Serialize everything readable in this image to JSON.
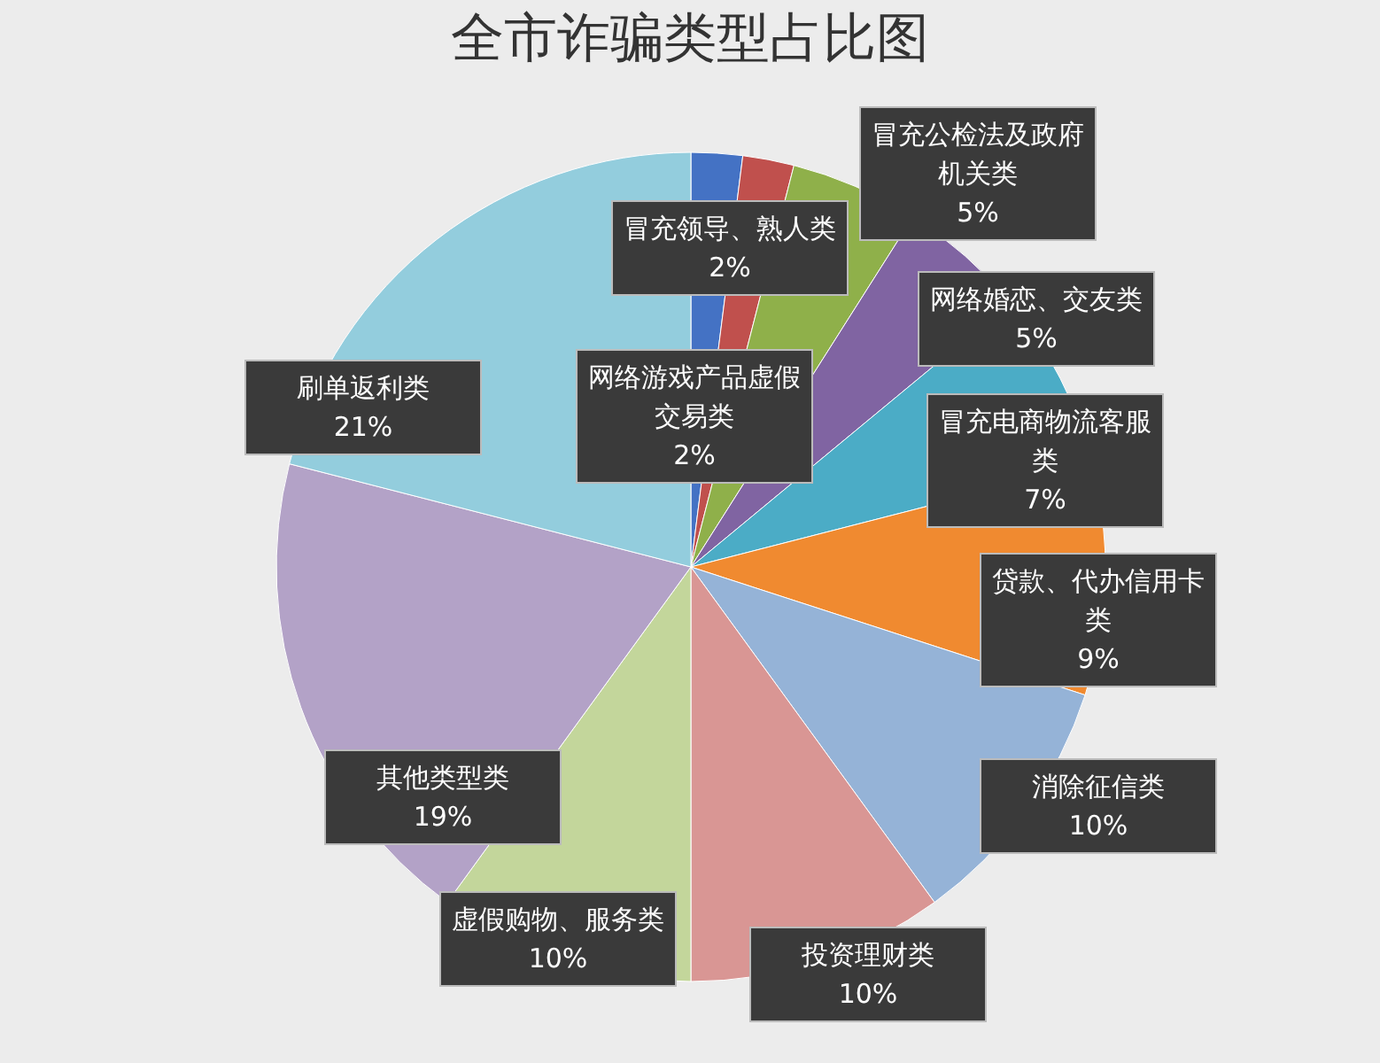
{
  "chart_data": {
    "type": "pie",
    "title": "全市诈骗类型占比图",
    "categories": [
      "网络游戏产品虚假交易类",
      "冒充领导、熟人类",
      "冒充公检法及政府机关类",
      "网络婚恋、交友类",
      "冒充电商物流客服类",
      "贷款、代办信用卡类",
      "消除征信类",
      "投资理财类",
      "虚假购物、服务类",
      "其他类型类",
      "刷单返利类"
    ],
    "values": [
      2,
      2,
      5,
      5,
      7,
      9,
      10,
      10,
      10,
      19,
      21
    ],
    "value_labels": [
      "2%",
      "2%",
      "5%",
      "5%",
      "7%",
      "9%",
      "10%",
      "10%",
      "10%",
      "19%",
      "21%"
    ],
    "colors": [
      "#4472c4",
      "#c0504d",
      "#8fb04a",
      "#8064a2",
      "#4bacc6",
      "#f08a30",
      "#95b3d7",
      "#d99694",
      "#c3d69b",
      "#b3a2c7",
      "#93cddd"
    ],
    "legend": false
  }
}
